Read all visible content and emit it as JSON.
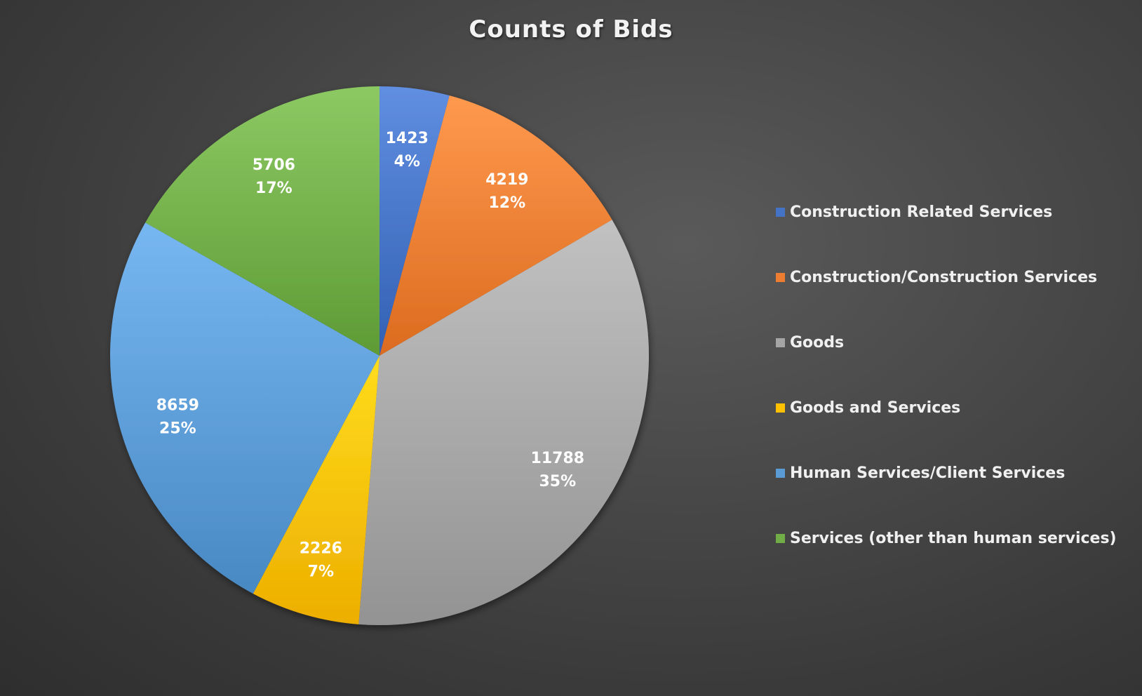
{
  "chart_data": {
    "type": "pie",
    "title": "Counts of Bids",
    "legend_position": "right",
    "categories": [
      "Construction Related Services",
      "Construction/Construction Services",
      "Goods",
      "Goods and Services",
      "Human Services/Client Services",
      "Services (other than human services)"
    ],
    "values": [
      1423,
      4219,
      11788,
      2226,
      8659,
      5706
    ],
    "percent_labels": [
      "4%",
      "12%",
      "35%",
      "7%",
      "25%",
      "17%"
    ],
    "colors": [
      "#4472c4",
      "#ed7d31",
      "#a5a5a5",
      "#ffc000",
      "#5b9bd5",
      "#70ad47"
    ]
  }
}
